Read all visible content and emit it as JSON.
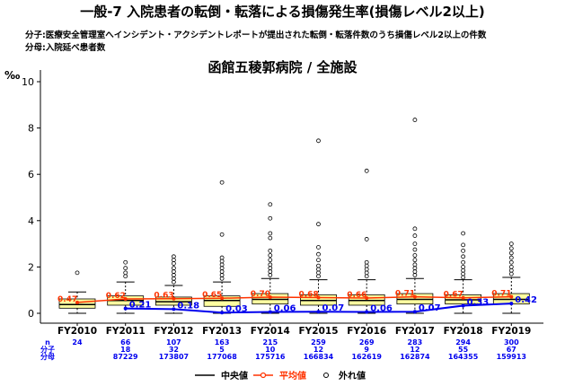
{
  "header": {
    "title": "一般-7 入院患者の転倒・転落による損傷発生率(損傷レベル2以上)",
    "numerator_note": "分子:医療安全管理室へインシデント・アクシデントレポートが提出された転倒・転落件数のうち損傷レベル2以上の件数",
    "denominator_note": "分母:入院延べ患者数"
  },
  "chart_data": {
    "type": "box",
    "title": "函館五稜郭病院 / 全施設",
    "ylabel": "‰",
    "ylim": [
      0,
      10.5
    ],
    "yticks": [
      0,
      2,
      4,
      6,
      8,
      10
    ],
    "categories": [
      "FY2010",
      "FY2011",
      "FY2012",
      "FY2013",
      "FY2014",
      "FY2015",
      "FY2016",
      "FY2017",
      "FY2018",
      "FY2019"
    ],
    "boxes": [
      {
        "q1": 0.22,
        "median": 0.38,
        "q3": 0.62,
        "whisker_low": 0.0,
        "whisker_high": 0.92
      },
      {
        "q1": 0.35,
        "median": 0.55,
        "q3": 0.75,
        "whisker_low": 0.0,
        "whisker_high": 1.35
      },
      {
        "q1": 0.35,
        "median": 0.5,
        "q3": 0.7,
        "whisker_low": 0.0,
        "whisker_high": 1.2
      },
      {
        "q1": 0.3,
        "median": 0.55,
        "q3": 0.75,
        "whisker_low": 0.0,
        "whisker_high": 1.35
      },
      {
        "q1": 0.4,
        "median": 0.6,
        "q3": 0.85,
        "whisker_low": 0.0,
        "whisker_high": 1.5
      },
      {
        "q1": 0.35,
        "median": 0.55,
        "q3": 0.8,
        "whisker_low": 0.0,
        "whisker_high": 1.45
      },
      {
        "q1": 0.35,
        "median": 0.55,
        "q3": 0.8,
        "whisker_low": 0.0,
        "whisker_high": 1.45
      },
      {
        "q1": 0.4,
        "median": 0.6,
        "q3": 0.85,
        "whisker_low": 0.0,
        "whisker_high": 1.5
      },
      {
        "q1": 0.4,
        "median": 0.58,
        "q3": 0.8,
        "whisker_low": 0.0,
        "whisker_high": 1.45
      },
      {
        "q1": 0.4,
        "median": 0.6,
        "q3": 0.85,
        "whisker_low": 0.0,
        "whisker_high": 1.55
      }
    ],
    "outliers": [
      [
        1.75
      ],
      [
        1.6,
        1.75,
        1.95,
        2.2
      ],
      [
        1.35,
        1.5,
        1.65,
        1.8,
        1.95,
        2.15,
        2.3,
        2.45
      ],
      [
        1.5,
        1.65,
        1.8,
        1.95,
        2.1,
        2.25,
        2.4,
        3.4,
        5.65
      ],
      [
        1.65,
        1.8,
        1.95,
        2.1,
        2.3,
        2.5,
        2.7,
        3.25,
        3.45,
        4.1,
        4.7
      ],
      [
        1.6,
        1.75,
        1.9,
        2.05,
        2.3,
        2.55,
        2.85,
        3.85,
        7.45
      ],
      [
        1.6,
        1.75,
        1.9,
        2.05,
        2.2,
        3.2,
        6.15
      ],
      [
        1.65,
        1.8,
        1.95,
        2.1,
        2.3,
        2.5,
        2.75,
        3.0,
        3.35,
        3.65,
        8.35
      ],
      [
        1.55,
        1.7,
        1.85,
        2.0,
        2.2,
        2.45,
        2.7,
        2.95,
        3.45
      ],
      [
        1.7,
        1.85,
        2.0,
        2.2,
        2.4,
        2.6,
        2.8,
        3.0
      ]
    ],
    "mean_series": {
      "name": "平均値",
      "color": "#ff3300",
      "values": [
        0.47,
        0.62,
        0.63,
        0.65,
        0.7,
        0.68,
        0.66,
        0.71,
        0.67,
        0.71
      ]
    },
    "hospital_series": {
      "color": "#0000ee",
      "values": [
        null,
        0.21,
        0.18,
        0.03,
        0.06,
        0.07,
        0.06,
        0.07,
        0.33,
        0.42
      ]
    },
    "table": {
      "row_labels": [
        "n",
        "分子",
        "分母"
      ],
      "n": [
        "24",
        "66",
        "107",
        "163",
        "215",
        "259",
        "269",
        "283",
        "294",
        "300"
      ],
      "numerator": [
        "",
        "18",
        "32",
        "5",
        "10",
        "12",
        "9",
        "12",
        "55",
        "67"
      ],
      "denominator": [
        "",
        "87229",
        "173807",
        "177068",
        "175716",
        "166834",
        "162619",
        "162874",
        "164355",
        "159913"
      ]
    },
    "legend": {
      "median": "中央値",
      "mean": "平均値",
      "outlier": "外れ値",
      "position": "bottom"
    },
    "colors": {
      "box_fill": "#ffffa0",
      "median_line": "#000000",
      "outlier": "#000000"
    }
  }
}
